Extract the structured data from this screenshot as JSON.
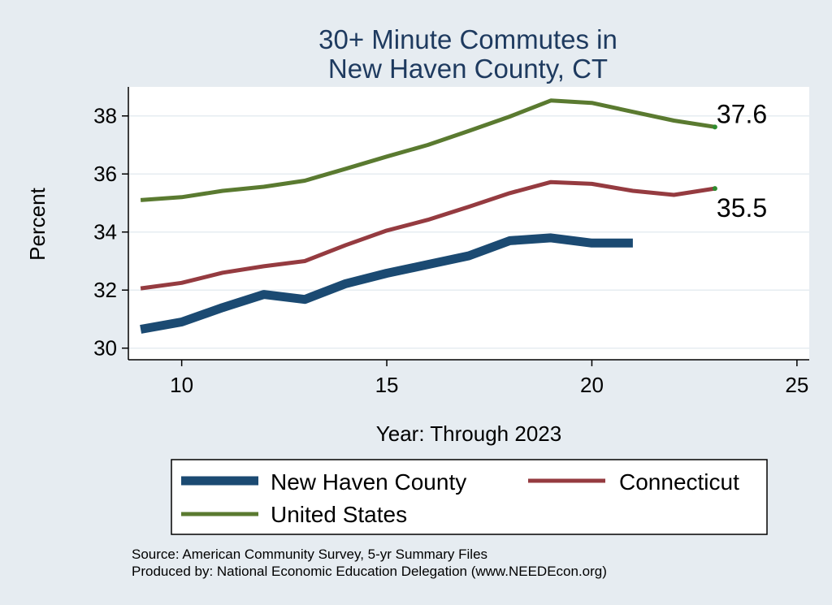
{
  "chart_data": {
    "type": "line",
    "title": [
      "30+ Minute Commutes in",
      "New Haven County, CT"
    ],
    "xlabel": "Year: Through 2023",
    "ylabel": "Percent",
    "xlim": [
      8.7,
      25.3
    ],
    "ylim": [
      29.6,
      39.0
    ],
    "xticks": [
      10,
      15,
      20,
      25
    ],
    "yticks": [
      30,
      32,
      34,
      36,
      38
    ],
    "grid": true,
    "legend_position": "bottom",
    "series": [
      {
        "name": "New Haven County",
        "color": "#1b4a72",
        "width": "thick",
        "x": [
          9,
          10,
          11,
          12,
          13,
          14,
          15,
          16,
          17,
          18,
          19,
          20,
          21
        ],
        "values": [
          30.65,
          30.9,
          31.4,
          31.85,
          31.68,
          32.22,
          32.58,
          32.88,
          33.18,
          33.7,
          33.8,
          33.62,
          33.62
        ]
      },
      {
        "name": "Connecticut",
        "color": "#953b40",
        "width": "medium",
        "x": [
          9,
          10,
          11,
          12,
          13,
          14,
          15,
          16,
          17,
          18,
          19,
          20,
          21,
          22,
          23
        ],
        "values": [
          32.06,
          32.25,
          32.6,
          32.82,
          33.0,
          33.55,
          34.05,
          34.42,
          34.87,
          35.34,
          35.72,
          35.66,
          35.42,
          35.28,
          35.5
        ]
      },
      {
        "name": "United States",
        "color": "#5a7a30",
        "width": "medium",
        "x": [
          9,
          10,
          11,
          12,
          13,
          14,
          15,
          16,
          17,
          18,
          19,
          20,
          21,
          22,
          23
        ],
        "values": [
          35.1,
          35.2,
          35.42,
          35.56,
          35.77,
          36.18,
          36.6,
          37.0,
          37.48,
          37.98,
          38.53,
          38.45,
          38.14,
          37.84,
          37.62
        ]
      }
    ],
    "annotations": [
      {
        "series": "United States",
        "text": "37.6"
      },
      {
        "series": "Connecticut",
        "text": "35.5"
      }
    ],
    "source_lines": [
      "Source: American Community Survey, 5-yr Summary Files",
      "Produced by: National Economic Education Delegation (www.NEEDEcon.org)"
    ]
  },
  "colors": {
    "background": "#e6ecf1",
    "plot_background": "#ffffff",
    "title": "#1e3a5f",
    "grid": "#e6ecf1"
  }
}
